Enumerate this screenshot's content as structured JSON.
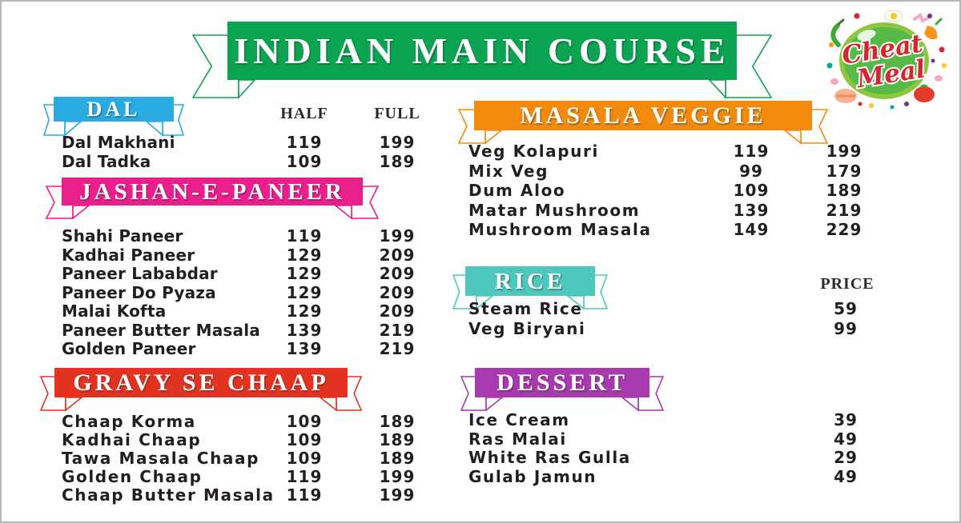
{
  "board": {
    "title": "INDIAN MAIN COURSE",
    "title_color": "#0AA351"
  },
  "logo": {
    "line1": "Cheat",
    "line2": "Meal"
  },
  "column_headers": {
    "half": "HALF",
    "full": "FULL",
    "price": "PRICE"
  },
  "text_color": "#231f20",
  "sections": [
    {
      "id": "dal",
      "title": "DAL",
      "color": "#29ABE2",
      "items": [
        {
          "name": "Dal Makhani",
          "half": "119",
          "full": "199"
        },
        {
          "name": "Dal Tadka",
          "half": "109",
          "full": "189"
        }
      ]
    },
    {
      "id": "jashan-e-paneer",
      "title": "JASHAN-E-PANEER",
      "color": "#EA1E8C",
      "items": [
        {
          "name": "Shahi Paneer",
          "half": "119",
          "full": "199"
        },
        {
          "name": "Kadhai Paneer",
          "half": "129",
          "full": "209"
        },
        {
          "name": "Paneer Lababdar",
          "half": "129",
          "full": "209"
        },
        {
          "name": "Paneer Do Pyaza",
          "half": "129",
          "full": "209"
        },
        {
          "name": "Malai Kofta",
          "half": "129",
          "full": "209"
        },
        {
          "name": "Paneer Butter Masala",
          "half": "139",
          "full": "219"
        },
        {
          "name": "Golden Paneer",
          "half": "139",
          "full": "219"
        }
      ]
    },
    {
      "id": "gravy-se-chaap",
      "title": "GRAVY SE CHAAP",
      "color": "#E23321",
      "items": [
        {
          "name": "Chaap Korma",
          "half": "109",
          "full": "189"
        },
        {
          "name": "Kadhai Chaap",
          "half": "109",
          "full": "189"
        },
        {
          "name": "Tawa Masala Chaap",
          "half": "109",
          "full": "189"
        },
        {
          "name": "Golden Chaap",
          "half": "119",
          "full": "199"
        },
        {
          "name": "Chaap Butter Masala",
          "half": "119",
          "full": "199"
        }
      ]
    },
    {
      "id": "masala-veggie",
      "title": "MASALA VEGGIE",
      "color": "#F28B0D",
      "items": [
        {
          "name": "Veg Kolapuri",
          "half": "119",
          "full": "199"
        },
        {
          "name": "Mix Veg",
          "half": "99",
          "full": "179"
        },
        {
          "name": "Dum Aloo",
          "half": "109",
          "full": "189"
        },
        {
          "name": "Matar Mushroom",
          "half": "139",
          "full": "219"
        },
        {
          "name": "Mushroom Masala",
          "half": "149",
          "full": "229"
        }
      ]
    },
    {
      "id": "rice",
      "title": "RICE",
      "color": "#4EC8BC",
      "items": [
        {
          "name": "Steam Rice",
          "price": "59"
        },
        {
          "name": "Veg Biryani",
          "price": "99"
        }
      ]
    },
    {
      "id": "dessert",
      "title": "DESSERT",
      "color": "#A939AE",
      "items": [
        {
          "name": "Ice Cream",
          "price": "39"
        },
        {
          "name": "Ras Malai",
          "price": "49"
        },
        {
          "name": "White Ras Gulla",
          "price": "29"
        },
        {
          "name": "Gulab Jamun",
          "price": "49"
        }
      ]
    }
  ]
}
